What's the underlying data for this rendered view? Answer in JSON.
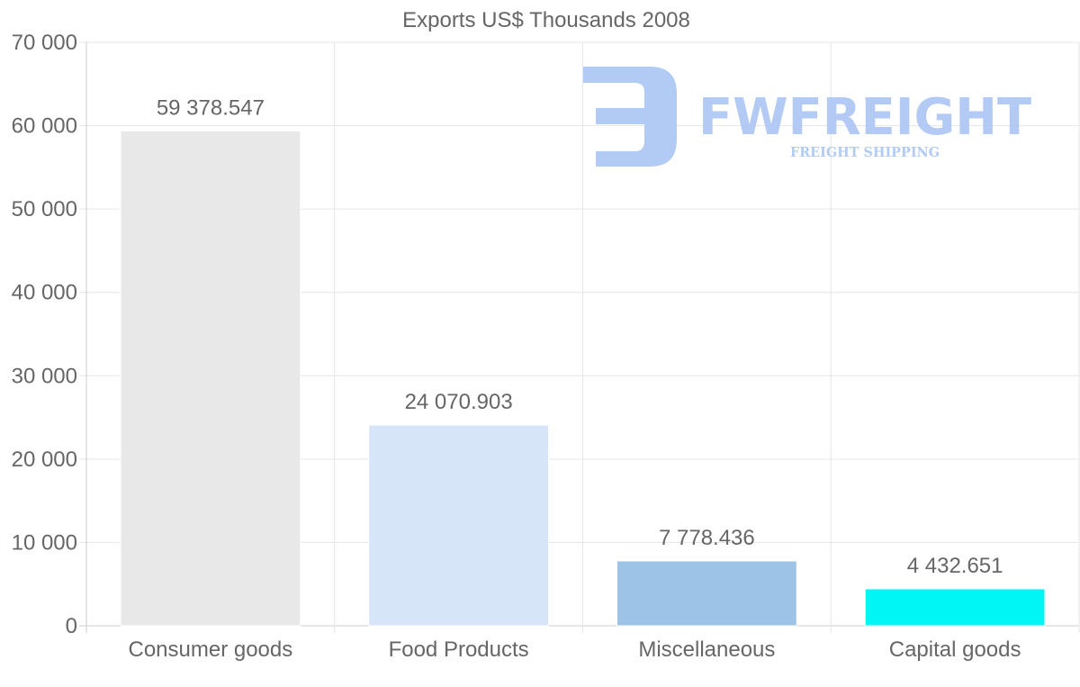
{
  "chart_data": {
    "type": "bar",
    "title": "Exports US$ Thousands 2008",
    "xlabel": "",
    "ylabel": "",
    "ylim": [
      0,
      70000
    ],
    "yticks": [
      0,
      10000,
      20000,
      30000,
      40000,
      50000,
      60000,
      70000
    ],
    "ytick_labels": [
      "0",
      "10 000",
      "20 000",
      "30 000",
      "40 000",
      "50 000",
      "60 000",
      "70 000"
    ],
    "categories": [
      "Consumer goods",
      "Food Products",
      "Miscellaneous",
      "Capital goods"
    ],
    "values": [
      59378.547,
      24070.903,
      7778.436,
      4432.651
    ],
    "data_labels": [
      "59 378.547",
      "24 070.903",
      "7 778.436",
      "4 432.651"
    ],
    "colors": [
      "#e8e8e8",
      "#d6e6f8",
      "#9dc3e6",
      "#00f5f5"
    ],
    "grid": true,
    "legend": "none"
  },
  "watermark": {
    "brand": "FWFREIGHT",
    "tagline": "FREIGHT SHIPPING",
    "color": "#aec8f4"
  }
}
